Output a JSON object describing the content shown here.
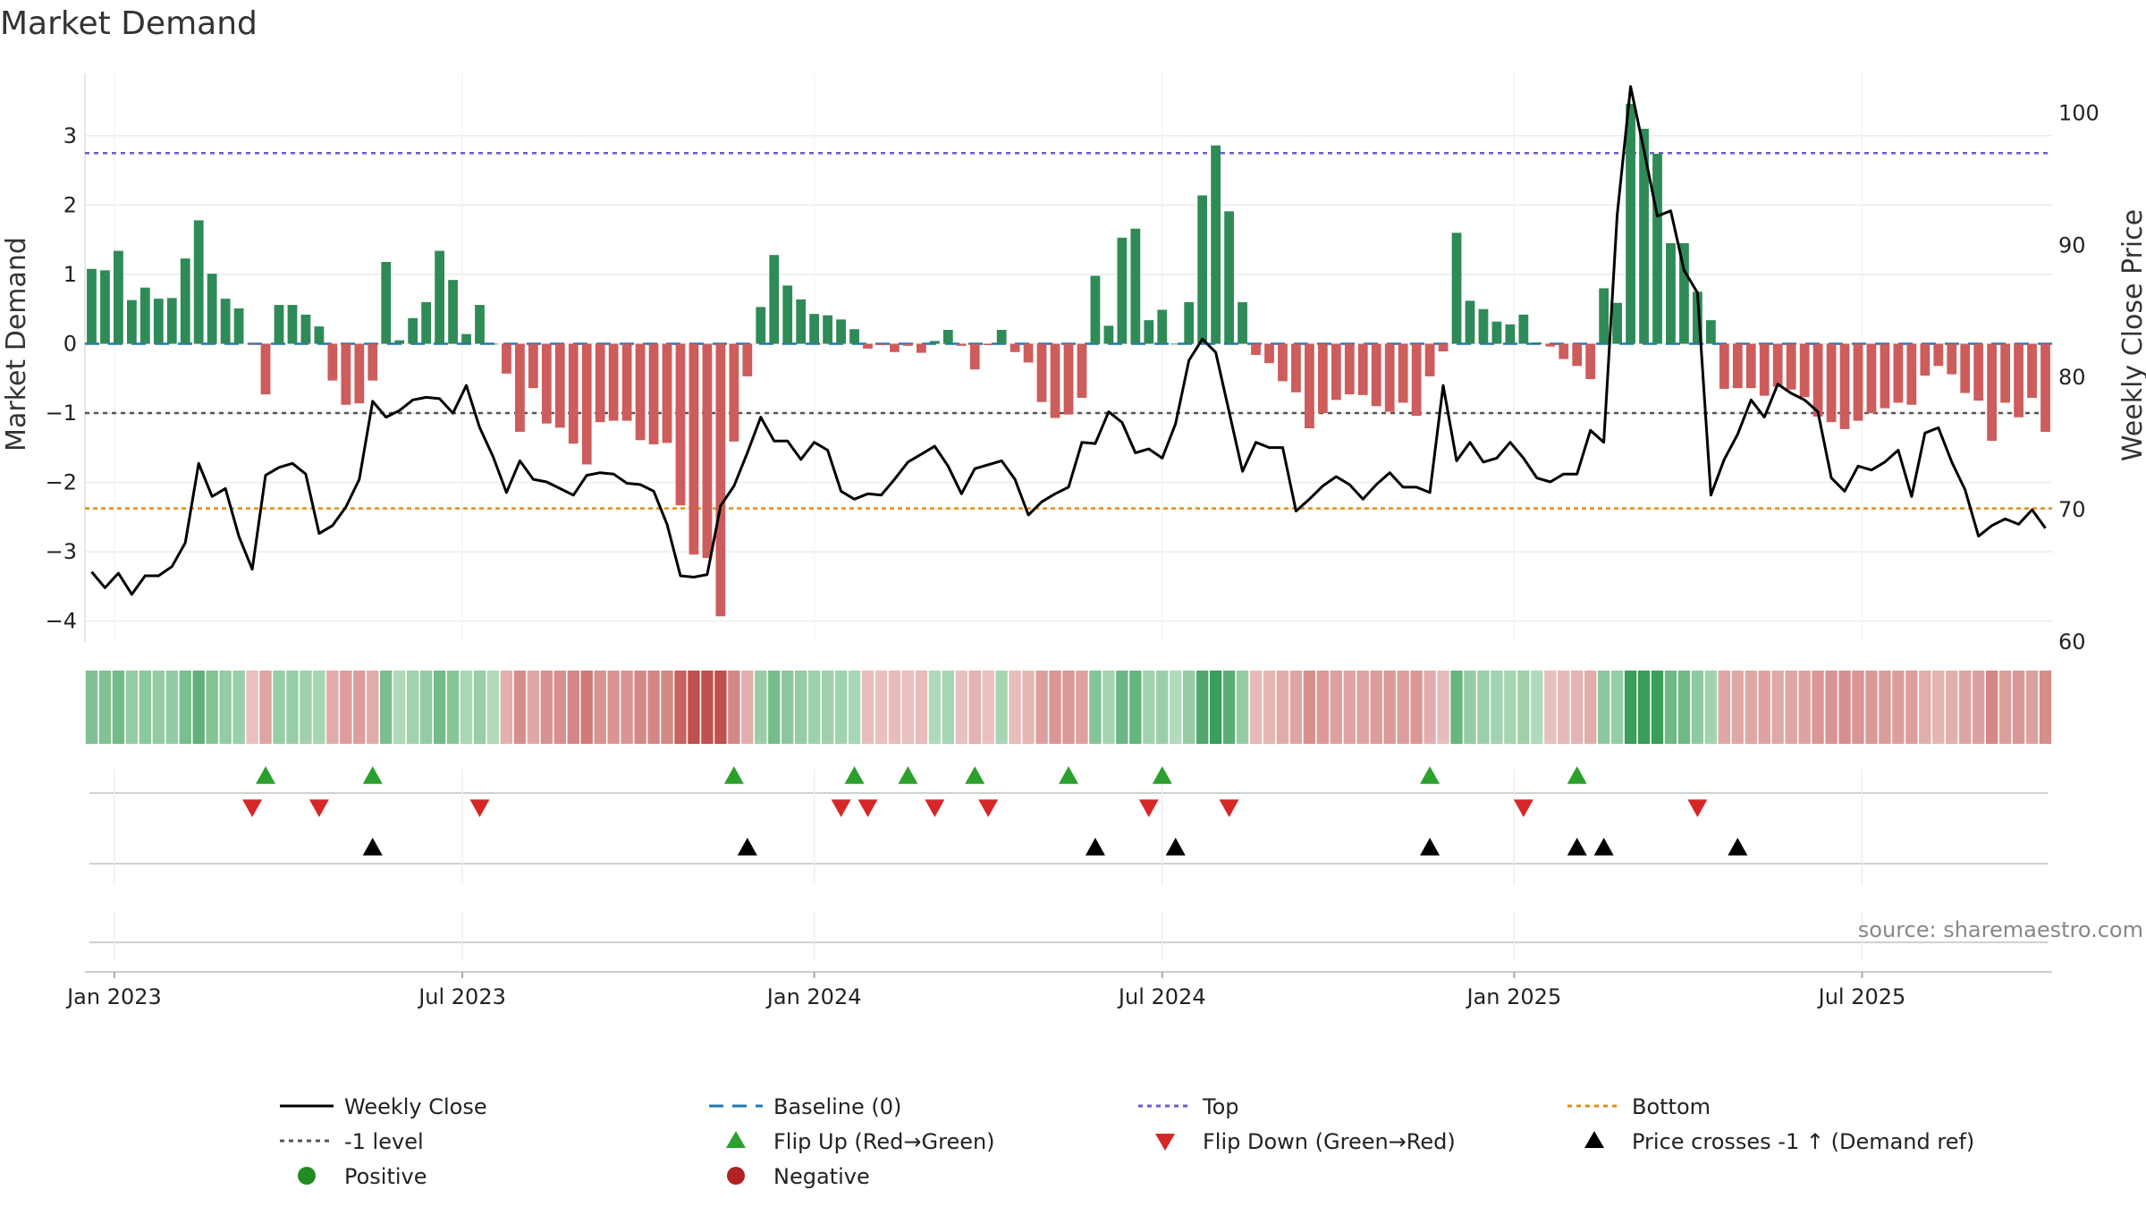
{
  "chart_data": {
    "type": "bar",
    "title": "Market Demand",
    "ylabel_left": "Market Demand",
    "ylabel_right": "Weekly Close Price",
    "source": "source: sharemaestro.com",
    "ylim_left": [
      -4.3,
      3.9
    ],
    "ylim_right": [
      60,
      103
    ],
    "yticks_left": [
      "3",
      "2",
      "1",
      "0",
      "−1",
      "−2",
      "−3",
      "−4"
    ],
    "yticks_left_values": [
      3,
      2,
      1,
      0,
      -1,
      -2,
      -3,
      -4
    ],
    "yticks_right": [
      "100",
      "90",
      "80",
      "70",
      "60"
    ],
    "yticks_right_values": [
      100,
      90,
      80,
      70,
      60
    ],
    "x_start_index_offset": 1.7,
    "xticks": [
      {
        "label": "Jan 2023",
        "index": 0
      },
      {
        "label": "Jul 2023",
        "index": 26
      },
      {
        "label": "Jan 2024",
        "index": 52.3
      },
      {
        "label": "Jul 2024",
        "index": 78.3
      },
      {
        "label": "Jan 2025",
        "index": 104.6
      },
      {
        "label": "Jul 2025",
        "index": 130.6
      }
    ],
    "reference_lines": {
      "top": 2.75,
      "bottom_price": 70.1,
      "minus_one_level": -1,
      "baseline": 0
    },
    "colors": {
      "positive": "#2e8b57",
      "negative": "#cd5c5c",
      "close": "#000000",
      "baseline": "#1f77b4",
      "top": "#6a5acd",
      "bottom": "#e08c1a",
      "level": "#555555",
      "flip_up": "#2ca02c",
      "flip_down": "#d62728",
      "cross": "#000000"
    },
    "series": [
      {
        "name": "Market Demand",
        "values": [
          1.08,
          1.06,
          1.34,
          0.63,
          0.81,
          0.65,
          0.66,
          1.23,
          1.78,
          1.01,
          0.65,
          0.51,
          -0.01,
          -0.73,
          0.56,
          0.56,
          0.42,
          0.25,
          -0.53,
          -0.88,
          -0.86,
          -0.53,
          1.18,
          0.05,
          0.37,
          0.6,
          1.34,
          0.92,
          0.14,
          0.56,
          0.0,
          -0.43,
          -1.27,
          -0.64,
          -1.15,
          -1.21,
          -1.44,
          -1.74,
          -1.13,
          -1.11,
          -1.11,
          -1.39,
          -1.45,
          -1.43,
          -2.33,
          -3.04,
          -3.09,
          -3.93,
          -1.41,
          -0.47,
          0.53,
          1.28,
          0.84,
          0.64,
          0.43,
          0.41,
          0.35,
          0.21,
          -0.07,
          -0.02,
          -0.12,
          -0.03,
          -0.13,
          0.04,
          0.2,
          -0.03,
          -0.37,
          -0.02,
          0.2,
          -0.12,
          -0.27,
          -0.84,
          -1.07,
          -1.02,
          -0.78,
          0.98,
          0.26,
          1.53,
          1.66,
          0.34,
          0.49,
          0.0,
          0.6,
          2.14,
          2.86,
          1.91,
          0.6,
          -0.16,
          -0.28,
          -0.54,
          -0.7,
          -1.22,
          -1.0,
          -0.81,
          -0.73,
          -0.74,
          -0.9,
          -0.98,
          -0.85,
          -1.04,
          -0.47,
          -0.11,
          1.6,
          0.62,
          0.5,
          0.32,
          0.28,
          0.42,
          0.02,
          -0.04,
          -0.22,
          -0.32,
          -0.51,
          0.8,
          0.59,
          3.46,
          3.1,
          2.74,
          1.45,
          1.45,
          0.75,
          0.34,
          -0.65,
          -0.64,
          -0.64,
          -0.75,
          -0.62,
          -0.66,
          -0.77,
          -1.05,
          -1.13,
          -1.23,
          -1.11,
          -1.0,
          -0.93,
          -0.85,
          -0.88,
          -0.46,
          -0.32,
          -0.44,
          -0.71,
          -0.82,
          -1.4,
          -0.85,
          -1.06,
          -0.78,
          -1.27
        ]
      },
      {
        "name": "Weekly Close",
        "values": [
          65.3,
          64.1,
          65.2,
          63.6,
          65.0,
          65.0,
          65.7,
          67.5,
          73.5,
          71.0,
          71.6,
          68.0,
          65.5,
          72.6,
          73.2,
          73.5,
          72.7,
          68.2,
          68.8,
          70.2,
          72.3,
          78.2,
          77.0,
          77.5,
          78.3,
          78.5,
          78.4,
          77.3,
          79.4,
          76.2,
          74.0,
          71.3,
          73.7,
          72.3,
          72.1,
          71.6,
          71.1,
          72.6,
          72.8,
          72.7,
          72.0,
          71.9,
          71.4,
          68.9,
          65.0,
          64.9,
          65.1,
          70.3,
          71.8,
          74.3,
          77.0,
          75.2,
          75.2,
          73.8,
          75.1,
          74.5,
          71.4,
          70.8,
          71.2,
          71.1,
          72.3,
          73.6,
          74.2,
          74.8,
          73.3,
          71.2,
          73.1,
          73.4,
          73.7,
          72.3,
          69.6,
          70.6,
          71.2,
          71.7,
          75.1,
          75.0,
          77.4,
          76.6,
          74.3,
          74.6,
          73.9,
          76.5,
          81.3,
          82.9,
          81.9,
          77.4,
          72.9,
          75.1,
          74.7,
          74.7,
          69.9,
          70.8,
          71.8,
          72.5,
          71.9,
          70.8,
          71.9,
          72.8,
          71.7,
          71.7,
          71.3,
          79.4,
          73.7,
          75.1,
          73.6,
          73.9,
          75.1,
          73.9,
          72.4,
          72.1,
          72.7,
          72.7,
          76.0,
          75.1,
          92.3,
          102.0,
          97.2,
          92.2,
          92.6,
          88.1,
          86.4,
          71.1,
          73.8,
          75.7,
          78.3,
          77.0,
          79.5,
          78.8,
          78.3,
          77.4,
          72.4,
          71.4,
          73.3,
          73.0,
          73.6,
          74.5,
          71.0,
          75.8,
          76.2,
          73.6,
          71.5,
          68.0,
          68.8,
          69.3,
          68.9,
          70.0,
          68.6
        ]
      }
    ],
    "flip_up_indices": [
      13,
      21,
      48,
      57,
      61,
      66,
      73,
      80,
      100,
      111
    ],
    "flip_down_indices": [
      12,
      17,
      29,
      56,
      58,
      63,
      67,
      79,
      85,
      107,
      120
    ],
    "cross_indices": [
      21,
      49,
      75,
      81,
      100,
      111,
      113,
      123
    ],
    "legend": [
      {
        "label": "Weekly Close",
        "kind": "solid",
        "color": "#000000"
      },
      {
        "label": "Baseline (0)",
        "kind": "dash",
        "color": "#1f77b4"
      },
      {
        "label": "Top",
        "kind": "dot",
        "color": "#6a5acd"
      },
      {
        "label": "Bottom",
        "kind": "dot",
        "color": "#e08c1a"
      },
      {
        "label": "-1 level",
        "kind": "dot",
        "color": "#555555"
      },
      {
        "label": "Flip Up (Red→Green)",
        "kind": "tri-up",
        "color": "#2ca02c"
      },
      {
        "label": "Flip Down (Green→Red)",
        "kind": "tri-down",
        "color": "#d62728"
      },
      {
        "label": "Price crosses -1 ↑ (Demand ref)",
        "kind": "tri-up",
        "color": "#000000"
      },
      {
        "label": "Positive",
        "kind": "dot-marker",
        "color": "#228b22"
      },
      {
        "label": "Negative",
        "kind": "dot-marker",
        "color": "#b22222"
      }
    ]
  }
}
